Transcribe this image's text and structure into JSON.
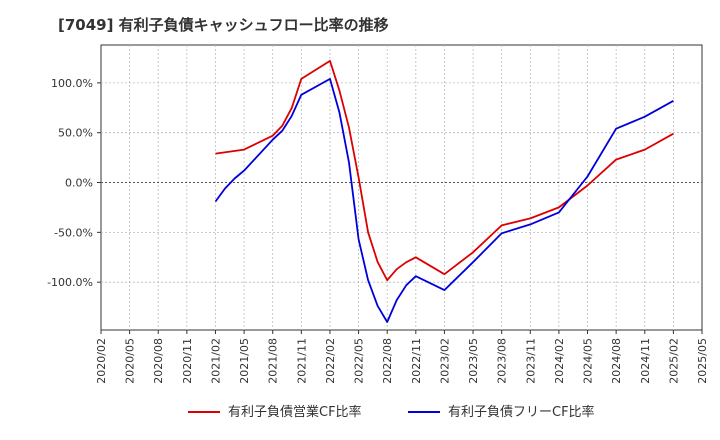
{
  "chart_data": {
    "type": "line",
    "title": "[7049]  有利子負債キャッシュフロー比率の推移",
    "xlabel": "",
    "ylabel": "",
    "xlim": [
      "2020/02",
      "2025/05"
    ],
    "ylim": [
      -148,
      138
    ],
    "y_ticks": [
      100,
      50,
      0,
      -50,
      -100
    ],
    "y_tick_labels": [
      "100.0%",
      "50.0%",
      "0.0%",
      "-50.0%",
      "-100.0%"
    ],
    "x_tick_labels": [
      "2020/02",
      "2020/05",
      "2020/08",
      "2020/11",
      "2021/02",
      "2021/05",
      "2021/08",
      "2021/11",
      "2022/02",
      "2022/05",
      "2022/08",
      "2022/11",
      "2023/02",
      "2023/05",
      "2023/08",
      "2023/11",
      "2024/02",
      "2024/05",
      "2024/08",
      "2024/11",
      "2025/02",
      "2025/05"
    ],
    "grid": true,
    "legend_position": "bottom",
    "series": [
      {
        "name": "有利子負債営業CF比率",
        "color": "#dd0000",
        "points": [
          [
            "2021/02",
            29
          ],
          [
            "2021/05",
            33
          ],
          [
            "2021/08",
            47
          ],
          [
            "2021/09",
            57
          ],
          [
            "2021/10",
            75
          ],
          [
            "2021/11",
            104
          ],
          [
            "2022/02",
            122
          ],
          [
            "2022/03",
            92
          ],
          [
            "2022/04",
            55
          ],
          [
            "2022/05",
            5
          ],
          [
            "2022/06",
            -50
          ],
          [
            "2022/07",
            -80
          ],
          [
            "2022/08",
            -98
          ],
          [
            "2022/09",
            -87
          ],
          [
            "2022/10",
            -80
          ],
          [
            "2022/11",
            -75
          ],
          [
            "2023/02",
            -92
          ],
          [
            "2023/05",
            -70
          ],
          [
            "2023/08",
            -43
          ],
          [
            "2023/11",
            -36
          ],
          [
            "2024/02",
            -25
          ],
          [
            "2024/05",
            -3
          ],
          [
            "2024/08",
            23
          ],
          [
            "2024/11",
            33
          ],
          [
            "2025/02",
            49
          ]
        ]
      },
      {
        "name": "有利子負債フリーCF比率",
        "color": "#0000dd",
        "points": [
          [
            "2021/02",
            -19
          ],
          [
            "2021/03",
            -6
          ],
          [
            "2021/04",
            4
          ],
          [
            "2021/05",
            12
          ],
          [
            "2021/08",
            43
          ],
          [
            "2021/09",
            52
          ],
          [
            "2021/10",
            67
          ],
          [
            "2021/11",
            88
          ],
          [
            "2022/02",
            104
          ],
          [
            "2022/03",
            70
          ],
          [
            "2022/04",
            20
          ],
          [
            "2022/05",
            -57
          ],
          [
            "2022/06",
            -98
          ],
          [
            "2022/07",
            -124
          ],
          [
            "2022/08",
            -140
          ],
          [
            "2022/09",
            -118
          ],
          [
            "2022/10",
            -103
          ],
          [
            "2022/11",
            -94
          ],
          [
            "2023/02",
            -108
          ],
          [
            "2023/05",
            -80
          ],
          [
            "2023/08",
            -51
          ],
          [
            "2023/11",
            -42
          ],
          [
            "2024/02",
            -30
          ],
          [
            "2024/05",
            6
          ],
          [
            "2024/08",
            54
          ],
          [
            "2024/11",
            66
          ],
          [
            "2025/02",
            82
          ]
        ]
      }
    ]
  }
}
